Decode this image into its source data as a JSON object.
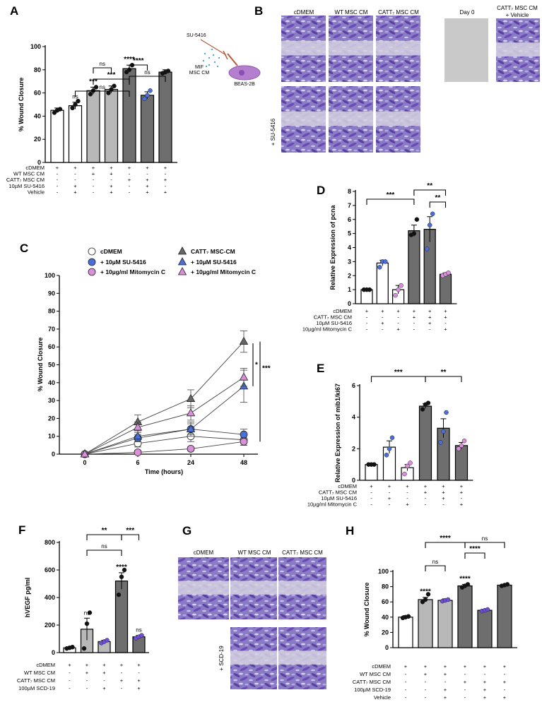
{
  "panel_letters": [
    "A",
    "B",
    "C",
    "D",
    "E",
    "F",
    "G",
    "H"
  ],
  "panel_b": {
    "headers": [
      "cDMEM",
      "WT MSC CM",
      "CATT₇ MSC CM"
    ],
    "right_headers": [
      "Day 0",
      "CATT₇ MSC CM",
      "+ Vehicle"
    ],
    "row_label": "+ SU-5416",
    "diagram": {
      "drug": "SU-5416",
      "source_line1": "MIF",
      "source_line2": "MSC CM",
      "cell": "BEAS-2B"
    }
  },
  "panel_g": {
    "headers": [
      "cDMEM",
      "WT MSC CM",
      "CATT₇ MSC CM"
    ],
    "row_label": "+ SCD-19"
  },
  "chart_data": [
    {
      "panel": "A",
      "type": "bar",
      "ylabel": "% Wound Closure",
      "ylim": [
        0,
        100
      ],
      "yticks": [
        0,
        20,
        40,
        60,
        80,
        100
      ],
      "values": [
        45,
        49,
        62,
        63,
        81,
        58,
        78
      ],
      "errors": [
        2,
        3,
        3,
        3,
        3,
        3,
        2
      ],
      "fills": [
        "#ffffff",
        "#ffffff",
        "#b8b8b8",
        "#b8b8b8",
        "#6e6e6e",
        "#6e6e6e",
        "#6e6e6e"
      ],
      "points": [
        [
          43,
          45,
          46
        ],
        [
          47,
          50,
          53
        ],
        [
          59,
          62,
          65
        ],
        [
          60,
          63,
          66
        ],
        [
          78,
          80,
          84
        ],
        [
          55,
          58,
          62
        ],
        [
          77,
          78,
          79
        ]
      ],
      "point_colors": [
        "#111111",
        "#111111",
        "#111111",
        "#111111",
        "#111111",
        "#4a6fd6",
        "#111111"
      ],
      "bar_labels": [
        "",
        "ns",
        "***",
        "",
        "****",
        "",
        ""
      ],
      "brackets": [
        {
          "from": 1,
          "to": 4,
          "label": "ns",
          "y": 129
        },
        {
          "from": 2,
          "to": 4,
          "label": "***",
          "y": 112
        },
        {
          "from": 2,
          "to": 3,
          "label": "ns",
          "y": 96
        },
        {
          "from": 4,
          "to": 6,
          "label": "ns",
          "y": 108
        },
        {
          "from": 4,
          "to": 5,
          "label": "****",
          "y": 92
        }
      ],
      "row_labels": [
        "cDMEM",
        "WT MSC CM",
        "CATT₇ MSC CM",
        "10µM SU-5416",
        "Vehicle"
      ],
      "table": [
        [
          "+",
          "+",
          "+",
          "+",
          "+",
          "+",
          "+"
        ],
        [
          "-",
          "-",
          "+",
          "+",
          "-",
          "-",
          "-"
        ],
        [
          "-",
          "-",
          "-",
          "-",
          "+",
          "+",
          "+"
        ],
        [
          "-",
          "+",
          "-",
          "+",
          "-",
          "+",
          "-"
        ],
        [
          "-",
          "+",
          "-",
          "+",
          "-",
          "+",
          "+"
        ]
      ]
    },
    {
      "panel": "C",
      "type": "line",
      "xlabel": "Time (hours)",
      "ylabel": "% Wound Closure",
      "x": [
        0,
        6,
        24,
        48
      ],
      "xticks": [
        "0",
        "6",
        "24",
        "48"
      ],
      "ylim": [
        0,
        100
      ],
      "yticks": [
        0,
        10,
        20,
        30,
        40,
        50,
        60,
        70,
        80,
        90,
        100
      ],
      "legend": [
        "cDMEM",
        "+ 10µM SU-5416",
        "+ 10µg/ml Mitomycin C",
        "CATT₇ MSC-CM",
        "+ 10µM SU-5416",
        "+ 10µg/ml Mitomycin C"
      ],
      "series": [
        {
          "name": "cDMEM",
          "values": [
            0,
            6,
            10,
            8
          ],
          "errors": [
            0,
            2,
            3,
            3
          ],
          "marker": "circle",
          "color": "#ffffff"
        },
        {
          "name": "+ 10µM SU-5416",
          "values": [
            0,
            9,
            14,
            11
          ],
          "errors": [
            0,
            2,
            3,
            3
          ],
          "marker": "circle",
          "color": "#4a6fd6"
        },
        {
          "name": "+ 10µg/ml Mitomycin C",
          "values": [
            0,
            1,
            3,
            7
          ],
          "errors": [
            0,
            1,
            1,
            2
          ],
          "marker": "circle",
          "color": "#d98fd9"
        },
        {
          "name": "CATT₇ MSC-CM",
          "values": [
            0,
            18,
            31,
            63
          ],
          "errors": [
            0,
            4,
            5,
            6
          ],
          "marker": "triangle",
          "color": "#666666"
        },
        {
          "name": "+ 10µM SU-5416",
          "values": [
            0,
            10,
            14,
            38
          ],
          "errors": [
            0,
            3,
            4,
            9
          ],
          "marker": "triangle",
          "color": "#4a6fd6"
        },
        {
          "name": "+ 10µg/ml Mitomycin C",
          "values": [
            0,
            15,
            23,
            43
          ],
          "errors": [
            0,
            3,
            4,
            5
          ],
          "marker": "triangle",
          "color": "#d98fd9"
        }
      ],
      "annotations": [
        "*",
        "***"
      ]
    },
    {
      "panel": "D",
      "type": "bar",
      "ylabel": "Relative Expression of pcna",
      "ylim": [
        0,
        8
      ],
      "yticks": [
        0,
        1,
        2,
        3,
        4,
        5,
        6,
        7,
        8
      ],
      "values": [
        1.0,
        2.9,
        1.0,
        5.2,
        5.3,
        2.1
      ],
      "errors": [
        0,
        0.2,
        0.3,
        0.4,
        0.9,
        0.1
      ],
      "fills": [
        "#ffffff",
        "#ffffff",
        "#ffffff",
        "#6e6e6e",
        "#6e6e6e",
        "#6e6e6e"
      ],
      "points": [
        [
          1.0,
          1.0,
          1.0
        ],
        [
          2.6,
          3.0,
          3.0
        ],
        [
          0.6,
          1.0,
          1.3
        ],
        [
          4.9,
          5.0,
          6.0
        ],
        [
          3.9,
          5.6,
          6.4
        ],
        [
          2.0,
          2.1,
          2.2
        ]
      ],
      "point_colors": [
        "#111111",
        "#4a6fd6",
        "#d98fd9",
        "#111111",
        "#4a6fd6",
        "#d98fd9"
      ],
      "brackets": [
        {
          "from": 0,
          "to": 3,
          "label": "***",
          "y": 282
        },
        {
          "from": 3,
          "to": 5,
          "label": "**",
          "y": 269
        },
        {
          "from": 4,
          "to": 5,
          "label": "**",
          "y": 286
        }
      ],
      "row_labels": [
        "cDMEM",
        "CATT₇ MSC CM",
        "10µM SU-5416",
        "10µg/ml Mitomycin C"
      ],
      "table": [
        [
          "+",
          "+",
          "+",
          "+",
          "+",
          "+"
        ],
        [
          "-",
          "-",
          "-",
          "+",
          "+",
          "+"
        ],
        [
          "-",
          "+",
          "-",
          "-",
          "+",
          "-"
        ],
        [
          "-",
          "-",
          "+",
          "-",
          "-",
          "+"
        ]
      ]
    },
    {
      "panel": "E",
      "type": "bar",
      "ylabel": "Relative Expression of mib1/ki67",
      "ylim": [
        0,
        6
      ],
      "yticks": [
        0,
        2,
        4,
        6
      ],
      "values": [
        1.0,
        2.1,
        0.8,
        4.7,
        3.3,
        2.2
      ],
      "errors": [
        0,
        0.4,
        0.2,
        0.15,
        0.6,
        0.2
      ],
      "fills": [
        "#ffffff",
        "#ffffff",
        "#ffffff",
        "#6e6e6e",
        "#6e6e6e",
        "#6e6e6e"
      ],
      "points": [
        [
          1.0,
          1.0,
          1.0
        ],
        [
          1.6,
          2.0,
          2.7
        ],
        [
          0.4,
          0.9,
          1.1
        ],
        [
          4.5,
          4.8,
          4.9
        ],
        [
          2.4,
          3.1,
          4.3
        ],
        [
          2.0,
          2.2,
          2.5
        ]
      ],
      "point_colors": [
        "#111111",
        "#4a6fd6",
        "#d98fd9",
        "#111111",
        "#4a6fd6",
        "#d98fd9"
      ],
      "brackets": [
        {
          "from": 0,
          "to": 3,
          "label": "***",
          "y": 533
        },
        {
          "from": 3,
          "to": 5,
          "label": "**",
          "y": 533
        }
      ],
      "row_labels": [
        "cDMEM",
        "CATT₇ MSC CM",
        "10µM SU-5416",
        "10µg/ml Mitomycin C"
      ],
      "table": [
        [
          "+",
          "+",
          "+",
          "+",
          "+",
          "+"
        ],
        [
          "-",
          "-",
          "-",
          "+",
          "+",
          "+"
        ],
        [
          "-",
          "+",
          "-",
          "-",
          "+",
          "-"
        ],
        [
          "-",
          "-",
          "+",
          "-",
          "-",
          "+"
        ]
      ]
    },
    {
      "panel": "F",
      "type": "bar",
      "ylabel": "hVEGF pg/ml",
      "ylim": [
        0,
        800
      ],
      "yticks": [
        0,
        200,
        400,
        600,
        800
      ],
      "values": [
        35,
        170,
        80,
        520,
        115
      ],
      "errors": [
        5,
        80,
        10,
        60,
        10
      ],
      "fills": [
        "#ffffff",
        "#b8b8b8",
        "#b8b8b8",
        "#6e6e6e",
        "#6e6e6e"
      ],
      "points": [
        [
          30,
          35,
          40
        ],
        [
          30,
          210,
          290
        ],
        [
          70,
          80,
          90
        ],
        [
          420,
          550,
          600
        ],
        [
          105,
          115,
          125
        ]
      ],
      "point_colors": [
        "#111111",
        "#111111",
        "#6f4fd6",
        "#111111",
        "#6f4fd6"
      ],
      "bar_labels": [
        "",
        "ns",
        "",
        "****",
        "ns"
      ],
      "brackets": [
        {
          "from": 1,
          "to": 3,
          "label": "**",
          "y": 757
        },
        {
          "from": 3,
          "to": 4,
          "label": "***",
          "y": 757
        },
        {
          "from": 1,
          "to": 3,
          "label": "ns",
          "y": 779,
          "inner": true
        }
      ],
      "row_labels": [
        "cDMEM",
        "WT MSC CM",
        "CATT₇ MSC CM",
        "100µM SCD-19"
      ],
      "table": [
        [
          "+",
          "+",
          "+",
          "+",
          "+"
        ],
        [
          "-",
          "+",
          "+",
          "-",
          "-"
        ],
        [
          "-",
          "-",
          "-",
          "+",
          "+"
        ],
        [
          "-",
          "-",
          "+",
          "-",
          "+"
        ]
      ]
    },
    {
      "panel": "H",
      "type": "bar",
      "ylabel": "% Wound Closure",
      "ylim": [
        0,
        100
      ],
      "yticks": [
        0,
        20,
        40,
        60,
        80,
        100
      ],
      "values": [
        40,
        63,
        62,
        81,
        49,
        82
      ],
      "errors": [
        2,
        3,
        2,
        2,
        1,
        1
      ],
      "fills": [
        "#ffffff",
        "#b8b8b8",
        "#b8b8b8",
        "#6e6e6e",
        "#6e6e6e",
        "#6e6e6e"
      ],
      "points": [
        [
          39,
          40,
          41
        ],
        [
          60,
          63,
          70
        ],
        [
          61,
          62,
          63
        ],
        [
          79,
          81,
          83
        ],
        [
          48,
          49,
          50
        ],
        [
          81,
          82,
          83
        ]
      ],
      "point_colors": [
        "#111111",
        "#111111",
        "#6f4fd6",
        "#111111",
        "#6f4fd6",
        "#111111"
      ],
      "bar_labels": [
        "",
        "****",
        "",
        "****",
        "",
        ""
      ],
      "brackets": [
        {
          "from": 1,
          "to": 3,
          "label": "****",
          "y": 768
        },
        {
          "from": 3,
          "to": 5,
          "label": "ns",
          "y": 768
        },
        {
          "from": 1,
          "to": 2,
          "label": "ns",
          "y": 801
        },
        {
          "from": 3,
          "to": 4,
          "label": "****",
          "y": 783
        }
      ],
      "row_labels": [
        "cDMEM",
        "WT MSC CM",
        "CATT₇ MSC CM",
        "100µM SCD-19",
        "Vehicle"
      ],
      "table": [
        [
          "+",
          "+",
          "+",
          "+",
          "+",
          "+"
        ],
        [
          "-",
          "+",
          "+",
          "-",
          "-",
          "-"
        ],
        [
          "-",
          "-",
          "-",
          "+",
          "+",
          "+"
        ],
        [
          "-",
          "-",
          "+",
          "-",
          "+",
          "-"
        ],
        [
          "-",
          "-",
          "+",
          "-",
          "+",
          "+"
        ]
      ]
    }
  ]
}
